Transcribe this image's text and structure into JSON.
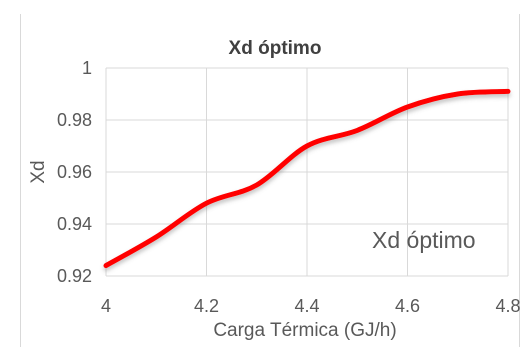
{
  "top_text_fragment": "",
  "chart_data": {
    "type": "line",
    "title": "Xd óptimo",
    "xlabel": "Carga Térmica (GJ/h)",
    "ylabel": "Xd",
    "xlim": [
      4,
      4.8
    ],
    "ylim": [
      0.92,
      1
    ],
    "x_ticks": [
      "4",
      "4.2",
      "4.4",
      "4.6",
      "4.8"
    ],
    "y_ticks": [
      "1",
      "0.98",
      "0.96",
      "0.94",
      "0.92"
    ],
    "grid": true,
    "legend_position": "bottom-right",
    "series": [
      {
        "name": "Xd óptimo",
        "color": "#ff0000",
        "x": [
          4.0,
          4.1,
          4.2,
          4.3,
          4.4,
          4.5,
          4.6,
          4.7,
          4.8
        ],
        "y": [
          0.924,
          0.935,
          0.948,
          0.955,
          0.97,
          0.976,
          0.985,
          0.99,
          0.991
        ]
      }
    ]
  }
}
